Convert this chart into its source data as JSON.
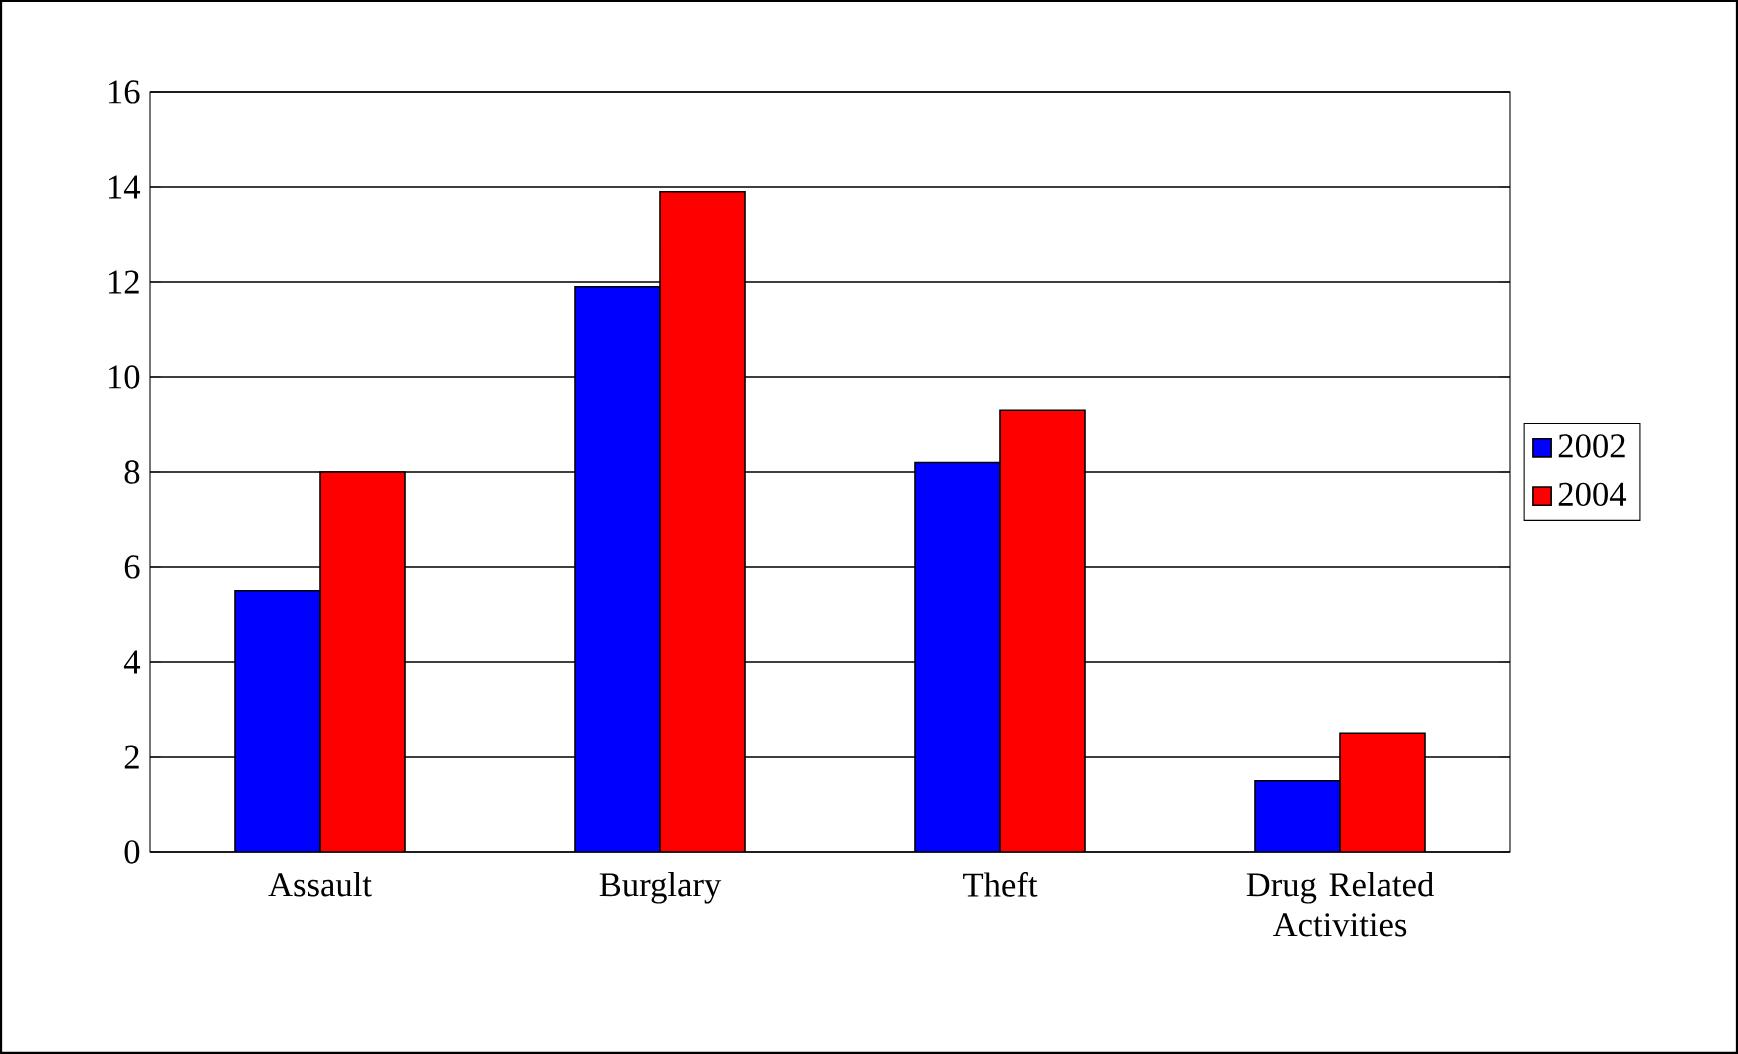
{
  "chart_data": {
    "type": "bar",
    "categories": [
      "Assault",
      "Burglary",
      "Theft",
      "Drug Related Activities"
    ],
    "series": [
      {
        "name": "2002",
        "color": "#0000ff",
        "values": [
          5.5,
          11.9,
          8.2,
          1.5
        ]
      },
      {
        "name": "2004",
        "color": "#ff0000",
        "values": [
          8,
          13.9,
          9.3,
          2.5
        ]
      }
    ],
    "ylim": [
      0,
      16
    ],
    "yticks": [
      0,
      2,
      4,
      6,
      8,
      10,
      12,
      14,
      16
    ],
    "grid": "y",
    "legend": "right"
  }
}
